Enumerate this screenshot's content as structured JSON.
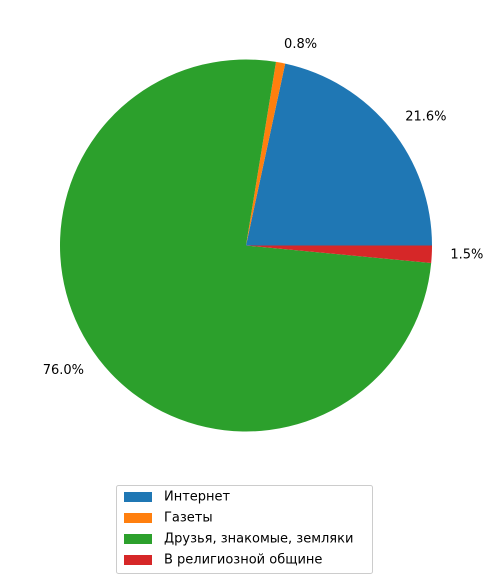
{
  "chart_data": {
    "type": "pie",
    "categories": [
      "Интернет",
      "Газеты",
      "Друзья, знакомые, земляки",
      "В религиозной общине"
    ],
    "values": [
      21.6,
      0.8,
      76.0,
      1.5
    ],
    "labels": [
      "21.6%",
      "0.8%",
      "76.0%",
      "1.5%"
    ],
    "colors": [
      "#1f77b4",
      "#ff7f0e",
      "#2ca02c",
      "#d62728"
    ],
    "start_angle_deg": 0,
    "direction": "counterclockwise",
    "legend_placement": "bottom-center",
    "title": ""
  }
}
